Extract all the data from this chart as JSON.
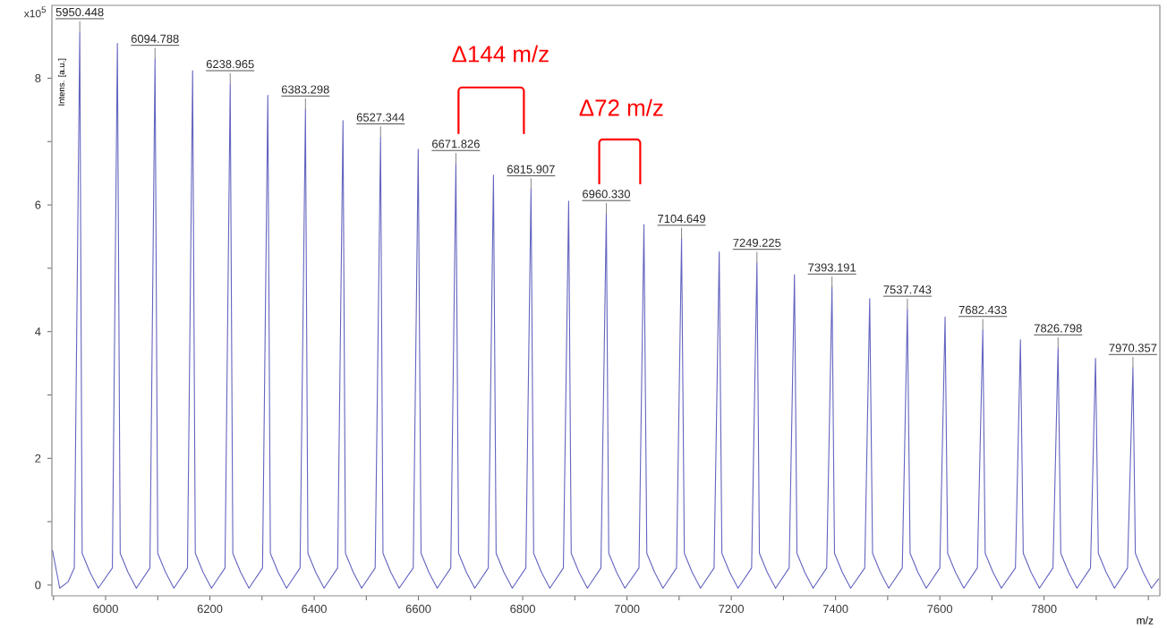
{
  "chart_data": {
    "type": "line",
    "ylabel": "Intens. [a.u.]",
    "xlabel": "m/z",
    "x": [
      5898,
      5912,
      5928,
      5940,
      5950.448,
      5955,
      5970,
      5986,
      6013,
      6022.6,
      6028,
      6043,
      6059,
      6085,
      6094.788,
      6100,
      6115,
      6131,
      6157,
      6166.9,
      6172,
      6187,
      6203,
      6229,
      6238.965,
      6244,
      6259,
      6275,
      6301,
      6311.1,
      6316,
      6331,
      6347,
      6373,
      6383.298,
      6388,
      6403,
      6419,
      6445,
      6455.3,
      6460,
      6475,
      6491,
      6517,
      6527.344,
      6532,
      6547,
      6563,
      6590,
      6599.6,
      6605,
      6620,
      6636,
      6662,
      6671.826,
      6677,
      6692,
      6708,
      6734,
      6743.9,
      6749,
      6764,
      6780,
      6806,
      6815.907,
      6821,
      6836,
      6852,
      6878,
      6888.1,
      6893,
      6908,
      6924,
      6950,
      6960.33,
      6965,
      6980,
      6996,
      7023,
      7032.5,
      7038,
      7053,
      7069,
      7095,
      7104.649,
      7110,
      7125,
      7141,
      7167,
      7176.9,
      7182,
      7197,
      7213,
      7239,
      7249.225,
      7254,
      7269,
      7285,
      7311,
      7321.2,
      7326,
      7341,
      7357,
      7383,
      7393.191,
      7398,
      7413,
      7429,
      7456,
      7465.5,
      7471,
      7486,
      7502,
      7528,
      7537.743,
      7543,
      7558,
      7574,
      7600,
      7610.1,
      7615,
      7630,
      7646,
      7672,
      7682.433,
      7687,
      7702,
      7718,
      7745,
      7754.6,
      7760,
      7775,
      7791,
      7817,
      7826.798,
      7832,
      7847,
      7863,
      7889,
      7898.6,
      7904,
      7919,
      7935,
      7960,
      7970.357,
      7975,
      7990,
      8006,
      8020
    ],
    "values": [
      0.55,
      -0.05,
      0.05,
      0.27,
      8.73,
      0.5,
      0.2,
      -0.05,
      0.27,
      8.55,
      0.5,
      0.2,
      -0.05,
      0.27,
      8.31,
      0.5,
      0.2,
      -0.05,
      0.27,
      8.12,
      0.5,
      0.2,
      -0.05,
      0.27,
      7.91,
      0.5,
      0.2,
      -0.05,
      0.27,
      7.73,
      0.5,
      0.2,
      -0.05,
      0.27,
      7.51,
      0.5,
      0.2,
      -0.05,
      0.27,
      7.33,
      0.5,
      0.2,
      -0.05,
      0.27,
      7.07,
      0.5,
      0.2,
      -0.05,
      0.27,
      6.88,
      0.5,
      0.2,
      -0.05,
      0.27,
      6.65,
      0.5,
      0.2,
      -0.05,
      0.27,
      6.47,
      0.5,
      0.2,
      -0.05,
      0.27,
      6.25,
      0.5,
      0.2,
      -0.05,
      0.27,
      6.06,
      0.5,
      0.2,
      -0.05,
      0.27,
      5.86,
      0.5,
      0.2,
      -0.05,
      0.27,
      5.69,
      0.5,
      0.2,
      -0.05,
      0.27,
      5.47,
      0.5,
      0.2,
      -0.05,
      0.27,
      5.26,
      0.5,
      0.2,
      -0.05,
      0.27,
      5.09,
      0.5,
      0.2,
      -0.05,
      0.27,
      4.9,
      0.5,
      0.2,
      -0.05,
      0.27,
      4.7,
      0.5,
      0.2,
      -0.05,
      0.27,
      4.52,
      0.5,
      0.2,
      -0.05,
      0.27,
      4.35,
      0.5,
      0.2,
      -0.05,
      0.27,
      4.23,
      0.5,
      0.2,
      -0.05,
      0.27,
      4.03,
      0.5,
      0.2,
      -0.05,
      0.27,
      3.87,
      0.5,
      0.2,
      -0.05,
      0.27,
      3.74,
      0.5,
      0.2,
      -0.05,
      0.27,
      3.58,
      0.5,
      0.2,
      -0.05,
      0.27,
      3.43,
      0.5,
      0.2,
      -0.05,
      0.1
    ],
    "color": "#6464c0",
    "line_style": "solid",
    "marker": "none",
    "grid": false,
    "xlim": [
      5897,
      8022
    ],
    "ylim": [
      -0.17,
      9.15
    ],
    "xticks": [
      {
        "value": 5900,
        "label": null
      },
      6000,
      {
        "value": 6100,
        "label": null
      },
      6200,
      {
        "value": 6300,
        "label": null
      },
      6400,
      {
        "value": 6500,
        "label": null
      },
      6600,
      {
        "value": 6700,
        "label": null
      },
      6800,
      {
        "value": 6900,
        "label": null
      },
      7000,
      {
        "value": 7100,
        "label": null
      },
      7200,
      {
        "value": 7300,
        "label": null
      },
      7400,
      {
        "value": 7500,
        "label": null
      },
      7600,
      {
        "value": 7700,
        "label": null
      },
      7800,
      {
        "value": 7900,
        "label": null
      },
      {
        "value": 8000,
        "label": null
      }
    ],
    "yticks": [
      0,
      {
        "value": 1,
        "label": null
      },
      2,
      {
        "value": 3,
        "label": null
      },
      4,
      {
        "value": 5,
        "label": null
      },
      6,
      {
        "value": 7,
        "label": null
      },
      8
    ],
    "annotations": [
      {
        "text": "5950.448",
        "x": 5950.448,
        "y": 8.73
      },
      {
        "text": "6094.788",
        "x": 6094.788,
        "y": 8.31
      },
      {
        "text": "6238.965",
        "x": 6238.965,
        "y": 7.91
      },
      {
        "text": "6383.298",
        "x": 6383.298,
        "y": 7.51
      },
      {
        "text": "6527.344",
        "x": 6527.344,
        "y": 7.07
      },
      {
        "text": "6671.826",
        "x": 6671.826,
        "y": 6.65
      },
      {
        "text": "6815.907",
        "x": 6815.907,
        "y": 6.25
      },
      {
        "text": "6960.330",
        "x": 6960.33,
        "y": 5.86
      },
      {
        "text": "7104.649",
        "x": 7104.649,
        "y": 5.47
      },
      {
        "text": "7249.225",
        "x": 7249.225,
        "y": 5.09
      },
      {
        "text": "7393.191",
        "x": 7393.191,
        "y": 4.7
      },
      {
        "text": "7537.743",
        "x": 7537.743,
        "y": 4.35
      },
      {
        "text": "7682.433",
        "x": 7682.433,
        "y": 4.03
      },
      {
        "text": "7826.798",
        "x": 7826.798,
        "y": 3.74
      },
      {
        "text": "7970.357",
        "x": 7970.357,
        "y": 3.43
      },
      "Δ144 m/z",
      "Δ72 m/z",
      "x10$^{5}$"
    ]
  }
}
